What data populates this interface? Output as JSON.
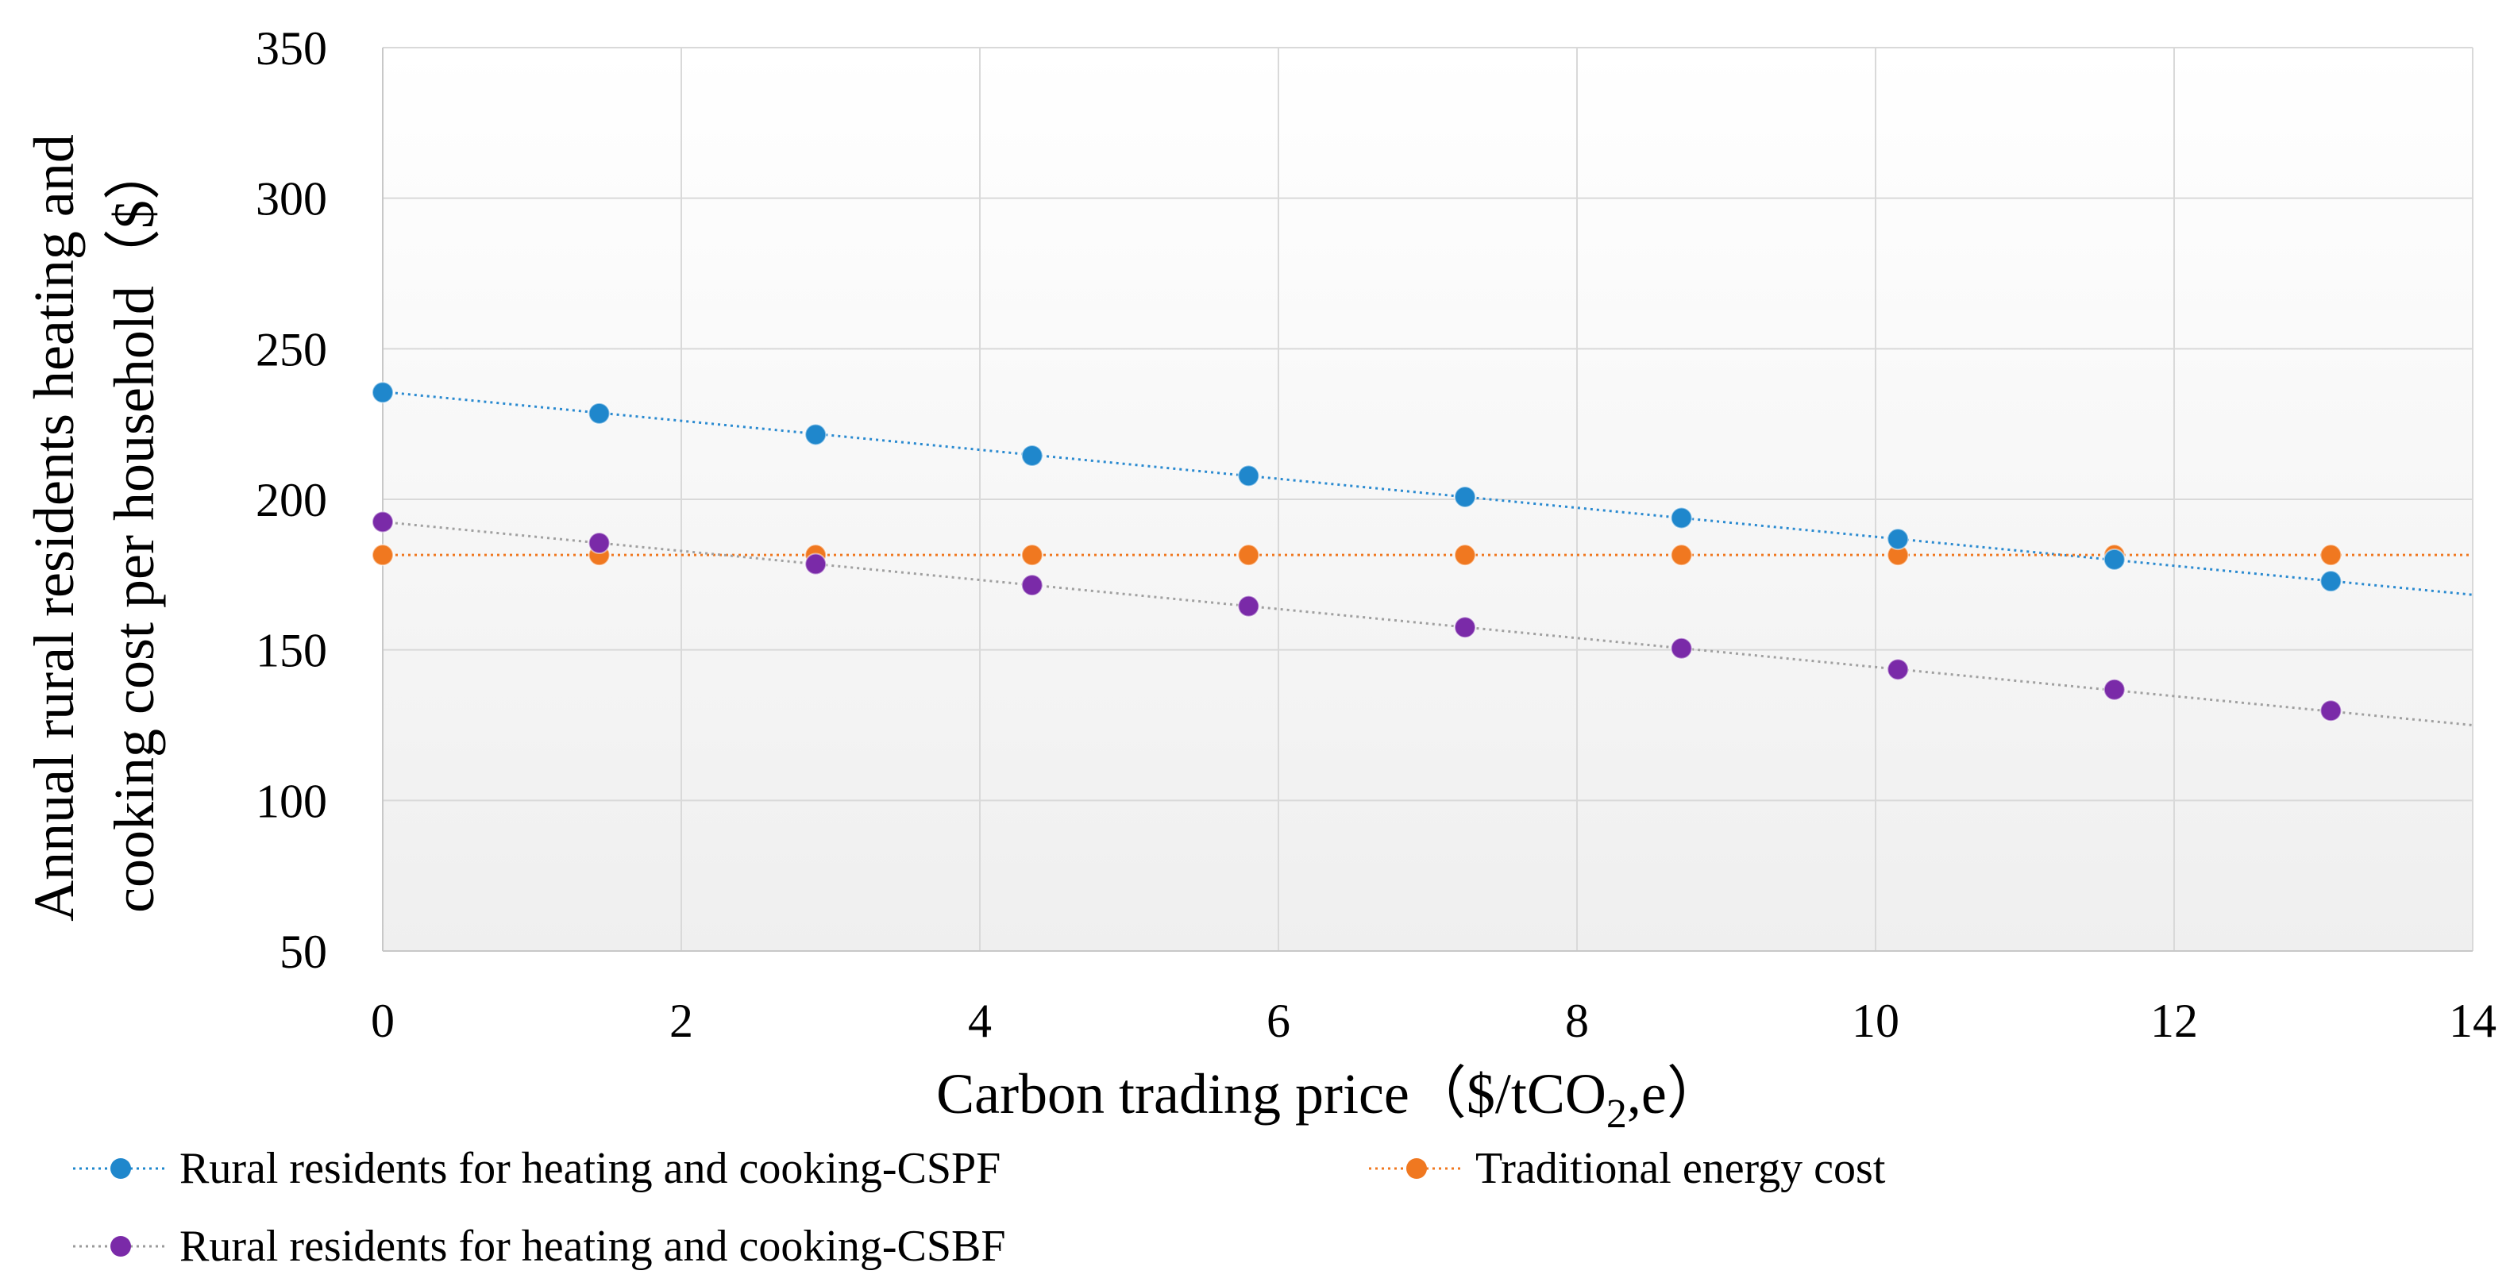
{
  "chart_data": {
    "type": "scatter",
    "title": "",
    "xlabel": "Carbon trading price（$/tCO2,e）",
    "xlabel_parts": {
      "before": "Carbon trading price（$/tCO",
      "sub": "2",
      "after": ",e）"
    },
    "ylabel_lines": [
      "Annual rural residents  heating and",
      "cooking cost per household（$）"
    ],
    "xlim": [
      0,
      14
    ],
    "ylim": [
      50,
      350
    ],
    "x_ticks": [
      0,
      2,
      4,
      6,
      8,
      10,
      12,
      14
    ],
    "y_ticks": [
      50,
      100,
      150,
      200,
      250,
      300,
      350
    ],
    "grid": true,
    "legend_position": "bottom",
    "series": [
      {
        "name": "Rural residents for heating and cooking-CSPF",
        "color": "#1f87cc",
        "line_style": "dotted",
        "trendline": {
          "x": [
            0,
            14
          ],
          "y": [
            235.7,
            168.3
          ]
        },
        "x": [
          0,
          1.45,
          2.9,
          4.35,
          5.8,
          7.25,
          8.7,
          10.15,
          11.6,
          13.05
        ],
        "y": [
          235.5,
          228.5,
          221.5,
          214.5,
          207.8,
          200.8,
          193.8,
          186.8,
          180.0,
          172.8
        ]
      },
      {
        "name": "Traditional energy cost",
        "color": "#f07820",
        "line_style": "dotted",
        "trendline": {
          "x": [
            0,
            14
          ],
          "y": [
            181.5,
            181.5
          ]
        },
        "x": [
          0,
          1.45,
          2.9,
          4.35,
          5.8,
          7.25,
          8.7,
          10.15,
          11.6,
          13.05
        ],
        "y": [
          181.5,
          181.5,
          181.5,
          181.5,
          181.5,
          181.5,
          181.5,
          181.5,
          181.5,
          181.5
        ]
      },
      {
        "name": "Rural residents for heating and cooking-CSBF",
        "color": "#7a2aa8",
        "line_style": "dotted",
        "trendline": {
          "x": [
            0,
            14
          ],
          "y": [
            192.5,
            125.0
          ]
        },
        "x": [
          0,
          1.45,
          2.9,
          4.35,
          5.8,
          7.25,
          8.7,
          10.15,
          11.6,
          13.05
        ],
        "y": [
          192.5,
          185.5,
          178.5,
          171.5,
          164.5,
          157.5,
          150.5,
          143.5,
          136.8,
          129.8
        ]
      }
    ]
  }
}
